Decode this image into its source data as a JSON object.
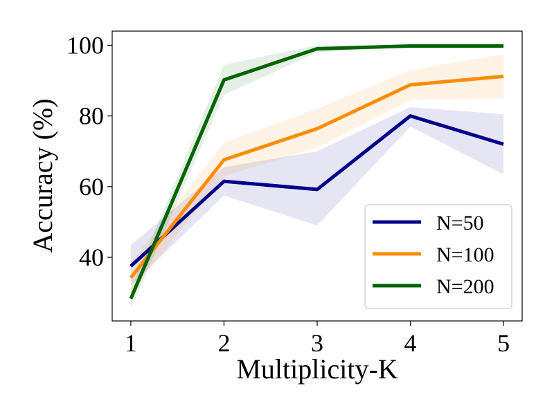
{
  "chart_data": {
    "type": "line",
    "title": "",
    "xlabel": "Multiplicity-K",
    "ylabel": "Accuracy (%)",
    "x": [
      1,
      2,
      3,
      4,
      5
    ],
    "xlim": [
      0.8,
      5.2
    ],
    "ylim": [
      22,
      104
    ],
    "xticks": [
      "1",
      "2",
      "3",
      "4",
      "5"
    ],
    "yticks": [
      "40",
      "60",
      "80",
      "100"
    ],
    "ytick_values": [
      40,
      60,
      80,
      100
    ],
    "grid": false,
    "legend_position": "lower-right",
    "series": [
      {
        "name": "N=50",
        "color": "#00008b",
        "values": [
          37.5,
          61.5,
          59.2,
          80.0,
          72.0
        ],
        "lower": [
          32.0,
          57.5,
          49.0,
          77.0,
          63.5
        ],
        "upper": [
          43.5,
          65.5,
          70.0,
          82.5,
          80.5
        ]
      },
      {
        "name": "N=100",
        "color": "#ff8c00",
        "values": [
          34.2,
          67.6,
          76.4,
          88.8,
          91.2
        ],
        "lower": [
          30.0,
          63.0,
          71.0,
          84.5,
          85.0
        ],
        "upper": [
          38.5,
          72.5,
          82.0,
          93.0,
          97.5
        ]
      },
      {
        "name": "N=200",
        "color": "#006400",
        "values": [
          28.3,
          90.2,
          99.0,
          99.8,
          99.8
        ],
        "lower": [
          25.5,
          86.0,
          98.0,
          99.5,
          99.5
        ],
        "upper": [
          31.0,
          94.5,
          100.0,
          100.0,
          100.0
        ]
      }
    ]
  }
}
